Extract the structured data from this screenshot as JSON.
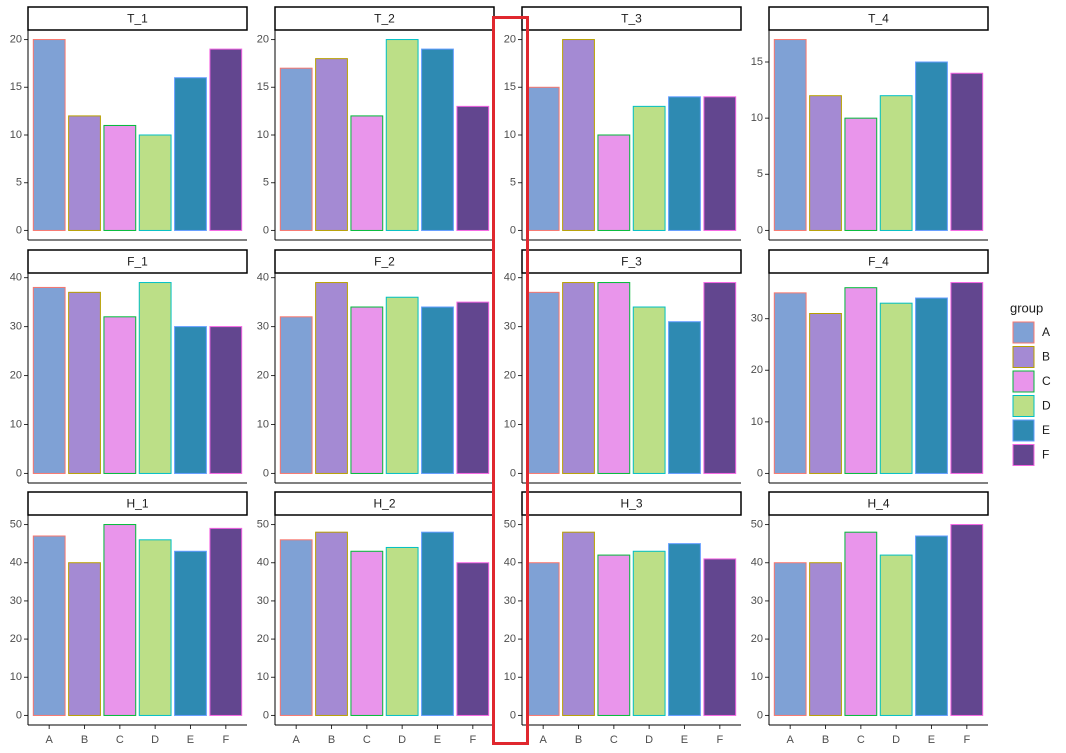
{
  "chart_data": [
    {
      "type": "bar",
      "title": "T_1",
      "categories": [
        "A",
        "B",
        "C",
        "D",
        "E",
        "F"
      ],
      "values": [
        20,
        12,
        11,
        10,
        16,
        19
      ],
      "ylim": [
        -1,
        21
      ],
      "yticks": [
        0,
        5,
        10,
        15,
        20
      ]
    },
    {
      "type": "bar",
      "title": "T_2",
      "categories": [
        "A",
        "B",
        "C",
        "D",
        "E",
        "F"
      ],
      "values": [
        17,
        18,
        12,
        20,
        19,
        13
      ],
      "ylim": [
        -1,
        21
      ],
      "yticks": [
        0,
        5,
        10,
        15,
        20
      ]
    },
    {
      "type": "bar",
      "title": "T_3",
      "categories": [
        "A",
        "B",
        "C",
        "D",
        "E",
        "F"
      ],
      "values": [
        15,
        20,
        10,
        13,
        14,
        14
      ],
      "ylim": [
        -1,
        21
      ],
      "yticks": [
        0,
        5,
        10,
        15,
        20
      ]
    },
    {
      "type": "bar",
      "title": "T_4",
      "categories": [
        "A",
        "B",
        "C",
        "D",
        "E",
        "F"
      ],
      "values": [
        17,
        12,
        10,
        12,
        15,
        14
      ],
      "ylim": [
        -0.85,
        17.85
      ],
      "yticks": [
        0,
        5,
        10,
        15
      ]
    },
    {
      "type": "bar",
      "title": "F_1",
      "categories": [
        "A",
        "B",
        "C",
        "D",
        "E",
        "F"
      ],
      "values": [
        38,
        37,
        32,
        39,
        30,
        30
      ],
      "ylim": [
        -1.95,
        40.95
      ],
      "yticks": [
        0,
        10,
        20,
        30,
        40
      ]
    },
    {
      "type": "bar",
      "title": "F_2",
      "categories": [
        "A",
        "B",
        "C",
        "D",
        "E",
        "F"
      ],
      "values": [
        32,
        39,
        34,
        36,
        34,
        35
      ],
      "ylim": [
        -1.95,
        40.95
      ],
      "yticks": [
        0,
        10,
        20,
        30,
        40
      ]
    },
    {
      "type": "bar",
      "title": "F_3",
      "categories": [
        "A",
        "B",
        "C",
        "D",
        "E",
        "F"
      ],
      "values": [
        37,
        39,
        39,
        34,
        31,
        39
      ],
      "ylim": [
        -1.95,
        40.95
      ],
      "yticks": [
        0,
        10,
        20,
        30,
        40
      ]
    },
    {
      "type": "bar",
      "title": "F_4",
      "categories": [
        "A",
        "B",
        "C",
        "D",
        "E",
        "F"
      ],
      "values": [
        35,
        31,
        36,
        33,
        34,
        37
      ],
      "ylim": [
        -1.85,
        38.85
      ],
      "yticks": [
        0,
        10,
        20,
        30
      ]
    },
    {
      "type": "bar",
      "title": "H_1",
      "categories": [
        "A",
        "B",
        "C",
        "D",
        "E",
        "F"
      ],
      "values": [
        47,
        40,
        50,
        46,
        43,
        49
      ],
      "ylim": [
        -2.5,
        52.5
      ],
      "yticks": [
        0,
        10,
        20,
        30,
        40,
        50
      ]
    },
    {
      "type": "bar",
      "title": "H_2",
      "categories": [
        "A",
        "B",
        "C",
        "D",
        "E",
        "F"
      ],
      "values": [
        46,
        48,
        43,
        44,
        48,
        40
      ],
      "ylim": [
        -2.5,
        52.5
      ],
      "yticks": [
        0,
        10,
        20,
        30,
        40,
        50
      ]
    },
    {
      "type": "bar",
      "title": "H_3",
      "categories": [
        "A",
        "B",
        "C",
        "D",
        "E",
        "F"
      ],
      "values": [
        40,
        48,
        42,
        43,
        45,
        41
      ],
      "ylim": [
        -2.5,
        52.5
      ],
      "yticks": [
        0,
        10,
        20,
        30,
        40,
        50
      ]
    },
    {
      "type": "bar",
      "title": "H_4",
      "categories": [
        "A",
        "B",
        "C",
        "D",
        "E",
        "F"
      ],
      "values": [
        40,
        40,
        48,
        42,
        47,
        50
      ],
      "ylim": [
        -2.5,
        52.5
      ],
      "yticks": [
        0,
        10,
        20,
        30,
        40,
        50
      ]
    }
  ],
  "legend": {
    "title": "group",
    "labels": [
      "A",
      "B",
      "C",
      "D",
      "E",
      "F"
    ],
    "colors": [
      "#7fa1d5",
      "#a48ad3",
      "#e995eb",
      "#bcdf87",
      "#2e8ab2",
      "#62468f"
    ],
    "edgecolors": [
      "#f8766d",
      "#b79f00",
      "#00ba38",
      "#00bfc4",
      "#619cff",
      "#f564e3"
    ]
  }
}
